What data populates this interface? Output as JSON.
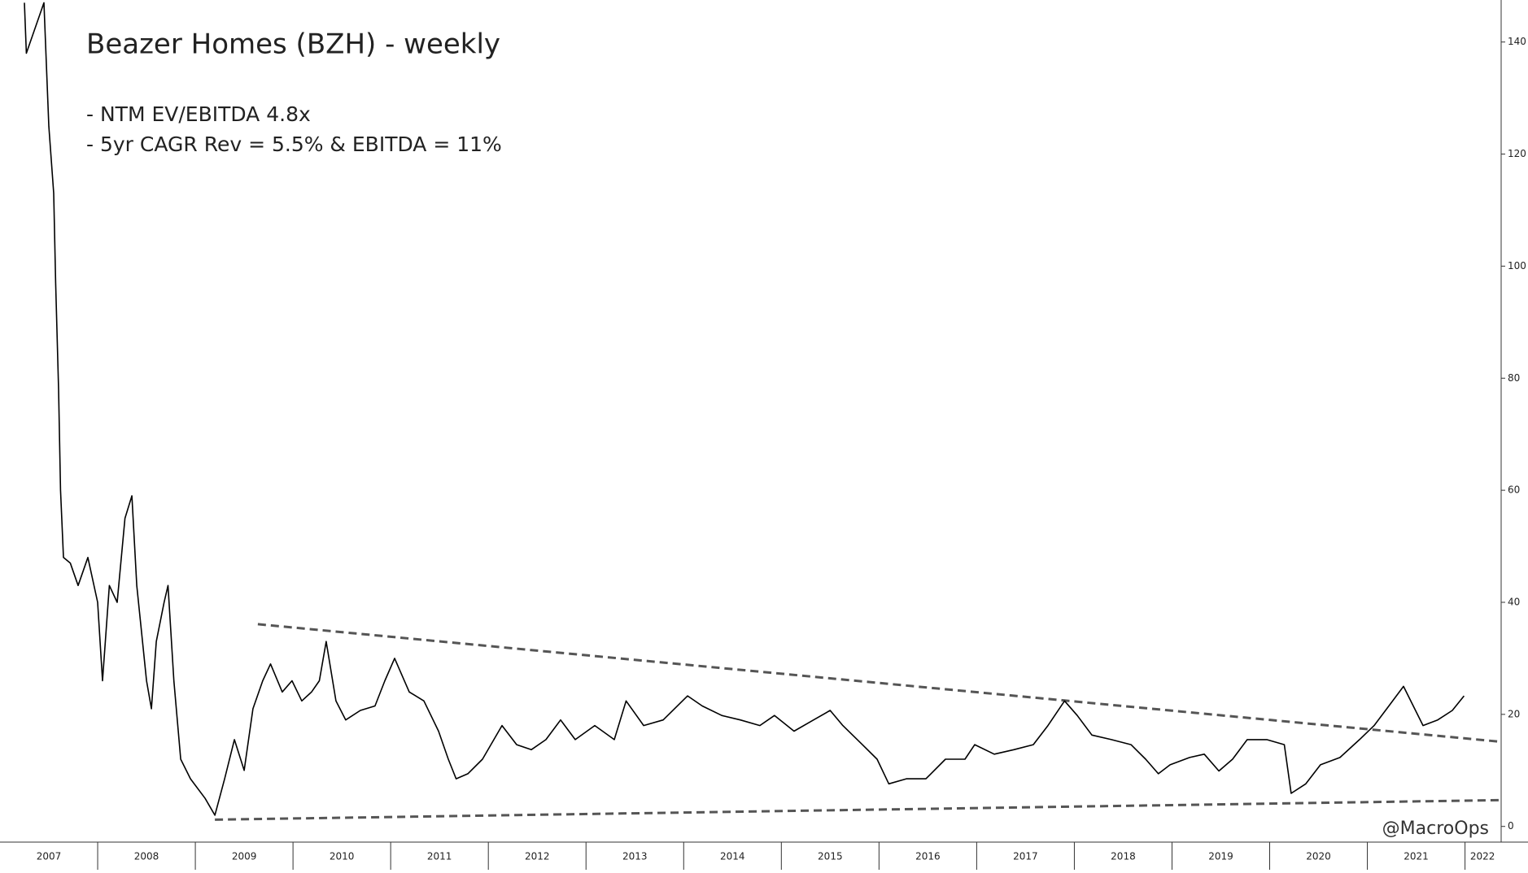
{
  "chart_data": {
    "type": "line",
    "title": "Beazer Homes (BZH) - weekly",
    "annotations": [
      "- NTM  EV/EBITDA 4.8x",
      "-  5yr CAGR Rev = 5.5% & EBITDA = 11%"
    ],
    "watermark": "@MacroOps",
    "series": [
      {
        "name": "BZH",
        "color": "#000000",
        "x": [
          2007.25,
          2007.27,
          2007.45,
          2007.5,
          2007.55,
          2007.57,
          2007.6,
          2007.62,
          2007.65,
          2007.72,
          2007.8,
          2007.9,
          2008.0,
          2008.05,
          2008.12,
          2008.2,
          2008.28,
          2008.35,
          2008.4,
          2008.5,
          2008.55,
          2008.6,
          2008.68,
          2008.72,
          2008.78,
          2008.85,
          2008.95,
          2009.1,
          2009.2,
          2009.3,
          2009.4,
          2009.5,
          2009.59,
          2009.69,
          2009.77,
          2009.89,
          2009.99,
          2010.09,
          2010.19,
          2010.27,
          2010.34,
          2010.44,
          2010.54,
          2010.69,
          2010.84,
          2010.94,
          2011.04,
          2011.19,
          2011.34,
          2011.49,
          2011.59,
          2011.67,
          2011.79,
          2011.94,
          2012.14,
          2012.29,
          2012.44,
          2012.59,
          2012.74,
          2012.89,
          2013.09,
          2013.29,
          2013.41,
          2013.59,
          2013.79,
          2014.04,
          2014.19,
          2014.39,
          2014.58,
          2014.78,
          2014.93,
          2015.13,
          2015.33,
          2015.5,
          2015.63,
          2015.83,
          2015.98,
          2016.1,
          2016.28,
          2016.48,
          2016.68,
          2016.88,
          2016.98,
          2017.18,
          2017.38,
          2017.58,
          2017.73,
          2017.9,
          2018.03,
          2018.18,
          2018.38,
          2018.58,
          2018.73,
          2018.86,
          2018.98,
          2019.18,
          2019.33,
          2019.48,
          2019.62,
          2019.77,
          2019.97,
          2020.15,
          2020.22,
          2020.37,
          2020.52,
          2020.72,
          2020.92,
          2021.07,
          2021.22,
          2021.37,
          2021.47,
          2021.57,
          2021.72,
          2021.87,
          2021.99
        ],
        "values": [
          147,
          138,
          147,
          125,
          113,
          97,
          78,
          60,
          48,
          47,
          43,
          48,
          40,
          26,
          43,
          40,
          55,
          59,
          43,
          26,
          21,
          33,
          40,
          43,
          26,
          12,
          8.5,
          5,
          2,
          8.5,
          15.5,
          10,
          21,
          26,
          29,
          24,
          26,
          22.4,
          24,
          26,
          33,
          22.4,
          19,
          20.7,
          21.5,
          26,
          30,
          24,
          22.4,
          17,
          12,
          8.5,
          9.4,
          12,
          18,
          14.6,
          13.7,
          15.5,
          19,
          15.5,
          18,
          15.5,
          22.4,
          18,
          19,
          23.3,
          21.5,
          19.8,
          19,
          18,
          19.8,
          17,
          19,
          20.7,
          18,
          14.6,
          12,
          7.6,
          8.5,
          8.5,
          12,
          12,
          14.6,
          12.9,
          13.7,
          14.6,
          18,
          22.4,
          19.8,
          16.3,
          15.5,
          14.6,
          12,
          9.4,
          11,
          12.3,
          12.9,
          9.9,
          12,
          15.5,
          15.5,
          14.6,
          5.9,
          7.6,
          11,
          12.3,
          15.5,
          18,
          21.5,
          25,
          21.5,
          18,
          19,
          20.7,
          23.3
        ]
      }
    ],
    "trendlines": [
      {
        "color": "#555555",
        "x": [
          2009.64,
          2022.37
        ],
        "values": [
          36.1,
          15.1
        ]
      },
      {
        "color": "#555555",
        "x": [
          2009.2,
          2022.37
        ],
        "values": [
          1.2,
          4.7
        ]
      }
    ],
    "xlim": [
      2007,
      2022.37
    ],
    "ylim": [
      -2.8,
      147.5
    ],
    "yticks": [
      0,
      20,
      40,
      60,
      80,
      100,
      120,
      140
    ],
    "xticks": [
      2008,
      2009,
      2010,
      2011,
      2012,
      2013,
      2014,
      2015,
      2016,
      2017,
      2018,
      2019,
      2020,
      2021,
      2022
    ],
    "xlabels": [
      {
        "value": 2007.5,
        "label": "2007"
      },
      {
        "value": 2008.5,
        "label": "2008"
      },
      {
        "value": 2009.5,
        "label": "2009"
      },
      {
        "value": 2010.5,
        "label": "2010"
      },
      {
        "value": 2011.5,
        "label": "2011"
      },
      {
        "value": 2012.5,
        "label": "2012"
      },
      {
        "value": 2013.5,
        "label": "2013"
      },
      {
        "value": 2014.5,
        "label": "2014"
      },
      {
        "value": 2015.5,
        "label": "2015"
      },
      {
        "value": 2016.5,
        "label": "2016"
      },
      {
        "value": 2017.5,
        "label": "2017"
      },
      {
        "value": 2018.5,
        "label": "2018"
      },
      {
        "value": 2019.5,
        "label": "2019"
      },
      {
        "value": 2020.5,
        "label": "2020"
      },
      {
        "value": 2021.5,
        "label": "2021"
      },
      {
        "value": 2022.18,
        "label": "2022"
      }
    ],
    "y_axis_side": "right"
  }
}
